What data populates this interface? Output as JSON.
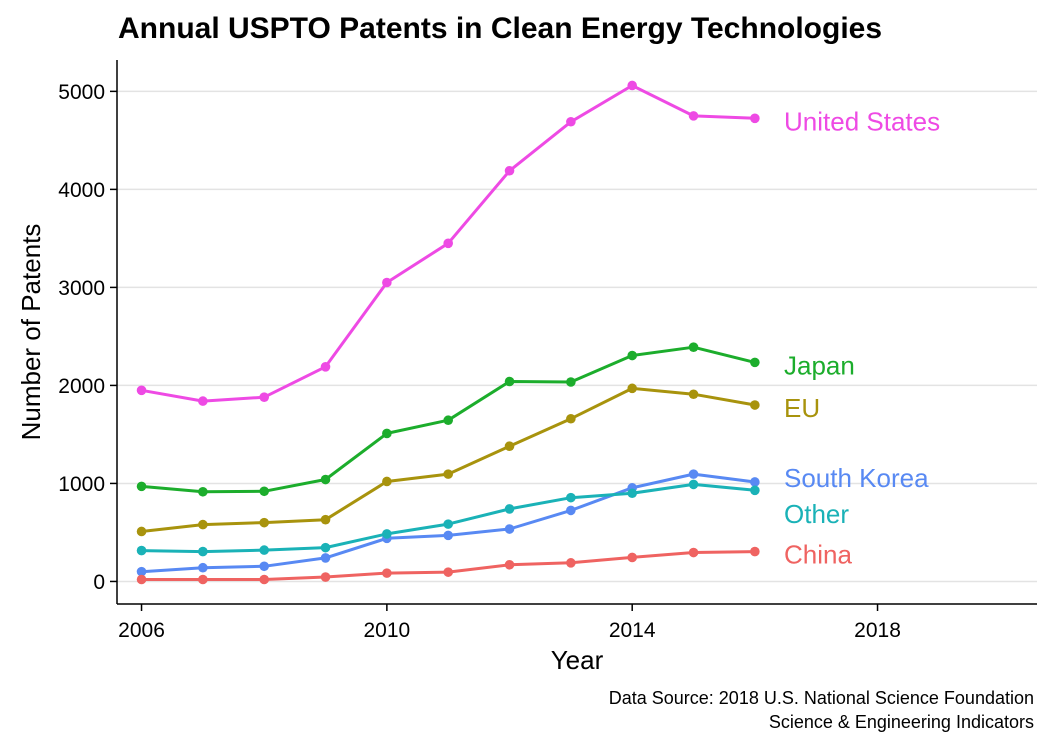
{
  "chart_data": {
    "type": "line",
    "title": "Annual USPTO Patents in Clean Energy Technologies",
    "xlabel": "Year",
    "ylabel": "Number of Patents",
    "xlim": [
      2005.6,
      2020.6
    ],
    "ylim": [
      -230,
      5320
    ],
    "x_ticks": [
      2006,
      2010,
      2014,
      2018
    ],
    "y_ticks": [
      0,
      1000,
      2000,
      3000,
      4000,
      5000
    ],
    "grid": "horizontal-major",
    "legend": "direct-labels-right",
    "caption": [
      "Data Source: 2018 U.S. National Science Foundation",
      "Science & Engineering Indicators"
    ],
    "x": [
      2006,
      2007,
      2008,
      2009,
      2010,
      2011,
      2012,
      2013,
      2014,
      2015,
      2016
    ],
    "series": [
      {
        "name": "United States",
        "color": "#EE4AE4",
        "values": [
          1950,
          1840,
          1880,
          2190,
          3050,
          3450,
          4190,
          4690,
          5060,
          4750,
          4725
        ]
      },
      {
        "name": "Japan",
        "color": "#1CAD2C",
        "values": [
          970,
          915,
          920,
          1040,
          1510,
          1645,
          2040,
          2035,
          2305,
          2390,
          2235
        ]
      },
      {
        "name": "EU",
        "color": "#A8930D",
        "values": [
          510,
          580,
          600,
          630,
          1020,
          1095,
          1380,
          1660,
          1970,
          1910,
          1800
        ]
      },
      {
        "name": "South Korea",
        "color": "#5889F3",
        "values": [
          100,
          140,
          155,
          240,
          440,
          470,
          535,
          725,
          955,
          1095,
          1015
        ]
      },
      {
        "name": "Other",
        "color": "#1AB2B7",
        "values": [
          315,
          305,
          320,
          345,
          485,
          585,
          740,
          855,
          900,
          990,
          930
        ]
      },
      {
        "name": "China",
        "color": "#EF6361",
        "values": [
          20,
          20,
          20,
          45,
          85,
          95,
          170,
          190,
          245,
          295,
          305
        ]
      }
    ]
  }
}
